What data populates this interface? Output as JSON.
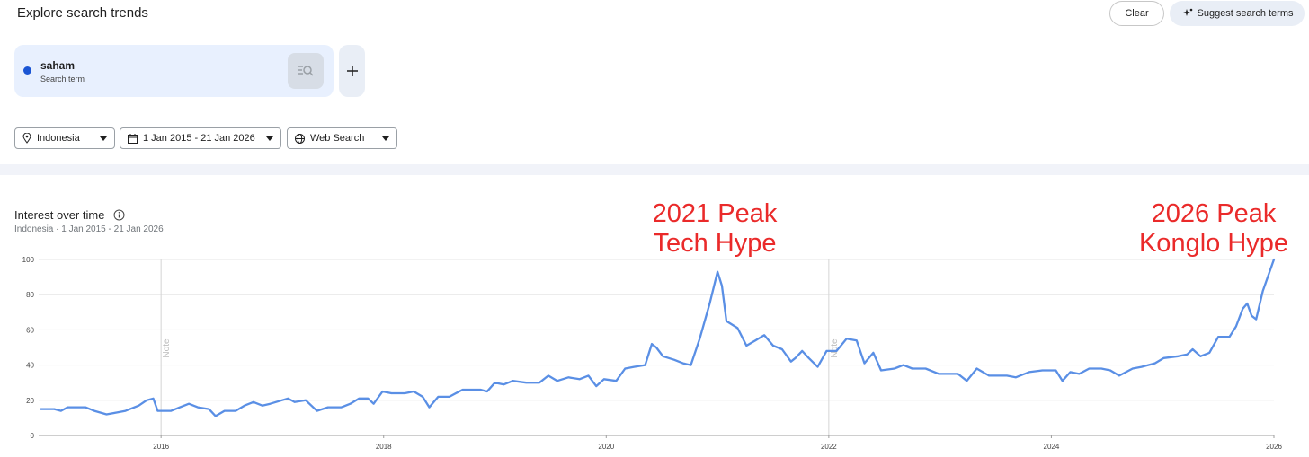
{
  "header": {
    "title": "Explore search trends",
    "buttons": [
      "Clear",
      "Suggest search terms"
    ]
  },
  "search_term": {
    "kind": "Search term"
  },
  "filters": [
    "Indonesia",
    "1 Jan 2015 - 21 Jan 2026",
    "Web Search"
  ],
  "chart_data": {
    "type": "line",
    "title": "Interest over time",
    "subtitle": "Indonesia · 1 Jan 2015 - 21 Jan 2026",
    "annotations": [
      [
        "2021 Peak",
        "Tech Hype"
      ],
      [
        "2026 Peak",
        "Konglo Hype"
      ]
    ],
    "notes": [
      {
        "x": 2016,
        "label": "Note"
      },
      {
        "x": 2022,
        "label": "Note"
      }
    ],
    "xlim": [
      2014.9,
      2026
    ],
    "ylim": [
      0,
      100
    ],
    "xticks": [
      2016,
      2018,
      2020,
      2022,
      2024,
      2026
    ],
    "yticks": [
      0,
      20,
      40,
      60,
      80,
      100
    ],
    "grid": true,
    "x": [
      2014.92,
      2015.04,
      2015.1,
      2015.16,
      2015.32,
      2015.4,
      2015.51,
      2015.6,
      2015.68,
      2015.8,
      2015.87,
      2015.93,
      2015.97,
      2016.09,
      2016.17,
      2016.25,
      2016.33,
      2016.43,
      2016.49,
      2016.57,
      2016.67,
      2016.75,
      2016.83,
      2016.91,
      2016.98,
      2017.14,
      2017.2,
      2017.3,
      2017.4,
      2017.5,
      2017.62,
      2017.7,
      2017.78,
      2017.86,
      2017.91,
      2017.99,
      2018.07,
      2018.19,
      2018.27,
      2018.35,
      2018.41,
      2018.49,
      2018.59,
      2018.71,
      2018.87,
      2018.93,
      2019.0,
      2019.08,
      2019.16,
      2019.28,
      2019.4,
      2019.48,
      2019.56,
      2019.66,
      2019.76,
      2019.84,
      2019.91,
      2019.98,
      2020.09,
      2020.17,
      2020.25,
      2020.35,
      2020.41,
      2020.45,
      2020.51,
      2020.61,
      2020.69,
      2020.76,
      2020.84,
      2020.93,
      2021.0,
      2021.04,
      2021.08,
      2021.18,
      2021.26,
      2021.34,
      2021.42,
      2021.5,
      2021.58,
      2021.66,
      2021.7,
      2021.76,
      2021.82,
      2021.9,
      2021.98,
      2022.07,
      2022.16,
      2022.25,
      2022.32,
      2022.4,
      2022.47,
      2022.59,
      2022.67,
      2022.75,
      2022.87,
      2022.99,
      2023.16,
      2023.24,
      2023.33,
      2023.44,
      2023.6,
      2023.68,
      2023.8,
      2023.92,
      2024.04,
      2024.1,
      2024.17,
      2024.25,
      2024.34,
      2024.45,
      2024.53,
      2024.61,
      2024.73,
      2024.81,
      2024.93,
      2025.01,
      2025.14,
      2025.22,
      2025.27,
      2025.34,
      2025.42,
      2025.5,
      2025.6,
      2025.66,
      2025.72,
      2025.76,
      2025.8,
      2025.84,
      2025.9,
      2026.0
    ],
    "series": [
      {
        "name": "saham",
        "color": "#5a8fe5",
        "values": [
          15,
          15,
          14,
          16,
          16,
          14,
          12,
          13,
          14,
          17,
          20,
          21,
          14,
          14,
          16,
          18,
          16,
          15,
          11,
          14,
          14,
          17,
          19,
          17,
          18,
          21,
          19,
          20,
          14,
          16,
          16,
          18,
          21,
          21,
          18,
          25,
          24,
          24,
          25,
          22,
          16,
          22,
          22,
          26,
          26,
          25,
          30,
          29,
          31,
          30,
          30,
          34,
          31,
          33,
          32,
          34,
          28,
          32,
          31,
          38,
          39,
          40,
          52,
          50,
          45,
          43,
          41,
          40,
          55,
          75,
          93,
          85,
          65,
          61,
          51,
          54,
          57,
          51,
          49,
          42,
          44,
          48,
          44,
          39,
          48,
          48,
          55,
          54,
          41,
          47,
          37,
          38,
          40,
          38,
          38,
          35,
          35,
          31,
          38,
          34,
          34,
          33,
          36,
          37,
          37,
          31,
          36,
          35,
          38,
          38,
          37,
          34,
          38,
          39,
          41,
          44,
          45,
          46,
          49,
          45,
          47,
          56,
          56,
          62,
          72,
          75,
          68,
          66,
          82,
          100
        ]
      }
    ]
  }
}
